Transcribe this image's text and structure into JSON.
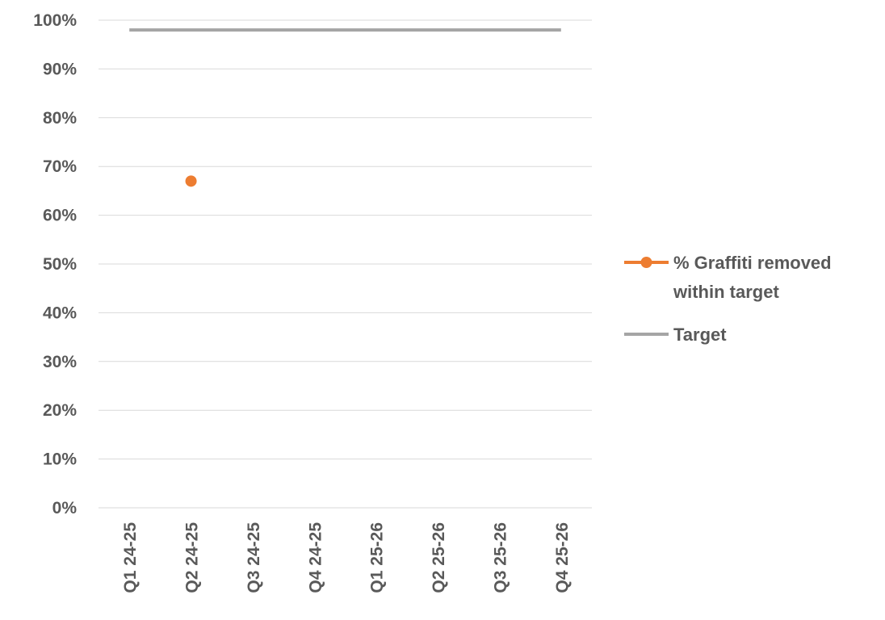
{
  "chart_data": {
    "type": "line",
    "title": "",
    "xlabel": "",
    "ylabel": "",
    "categories": [
      "Q1 24-25",
      "Q2 24-25",
      "Q3 24-25",
      "Q4 24-25",
      "Q1 25-26",
      "Q2 25-26",
      "Q3 25-26",
      "Q4 25-26"
    ],
    "ylim": [
      0,
      1
    ],
    "yticks": [
      "0%",
      "10%",
      "20%",
      "30%",
      "40%",
      "50%",
      "60%",
      "70%",
      "80%",
      "90%",
      "100%"
    ],
    "grid": true,
    "legend_position": "right",
    "series": [
      {
        "name": "% Graffiti removed within target",
        "legend_lines": [
          "% Graffiti removed",
          "within target"
        ],
        "color": "#ED7D31",
        "marker": "circle",
        "values": [
          null,
          0.67,
          null,
          null,
          null,
          null,
          null,
          null
        ]
      },
      {
        "name": "Target",
        "legend_lines": [
          "Target"
        ],
        "color": "#A5A5A5",
        "marker": "none",
        "values": [
          0.98,
          0.98,
          0.98,
          0.98,
          0.98,
          0.98,
          0.98,
          0.98
        ]
      }
    ],
    "colors": {
      "grid": "#D9D9D9",
      "text": "#595959"
    }
  }
}
